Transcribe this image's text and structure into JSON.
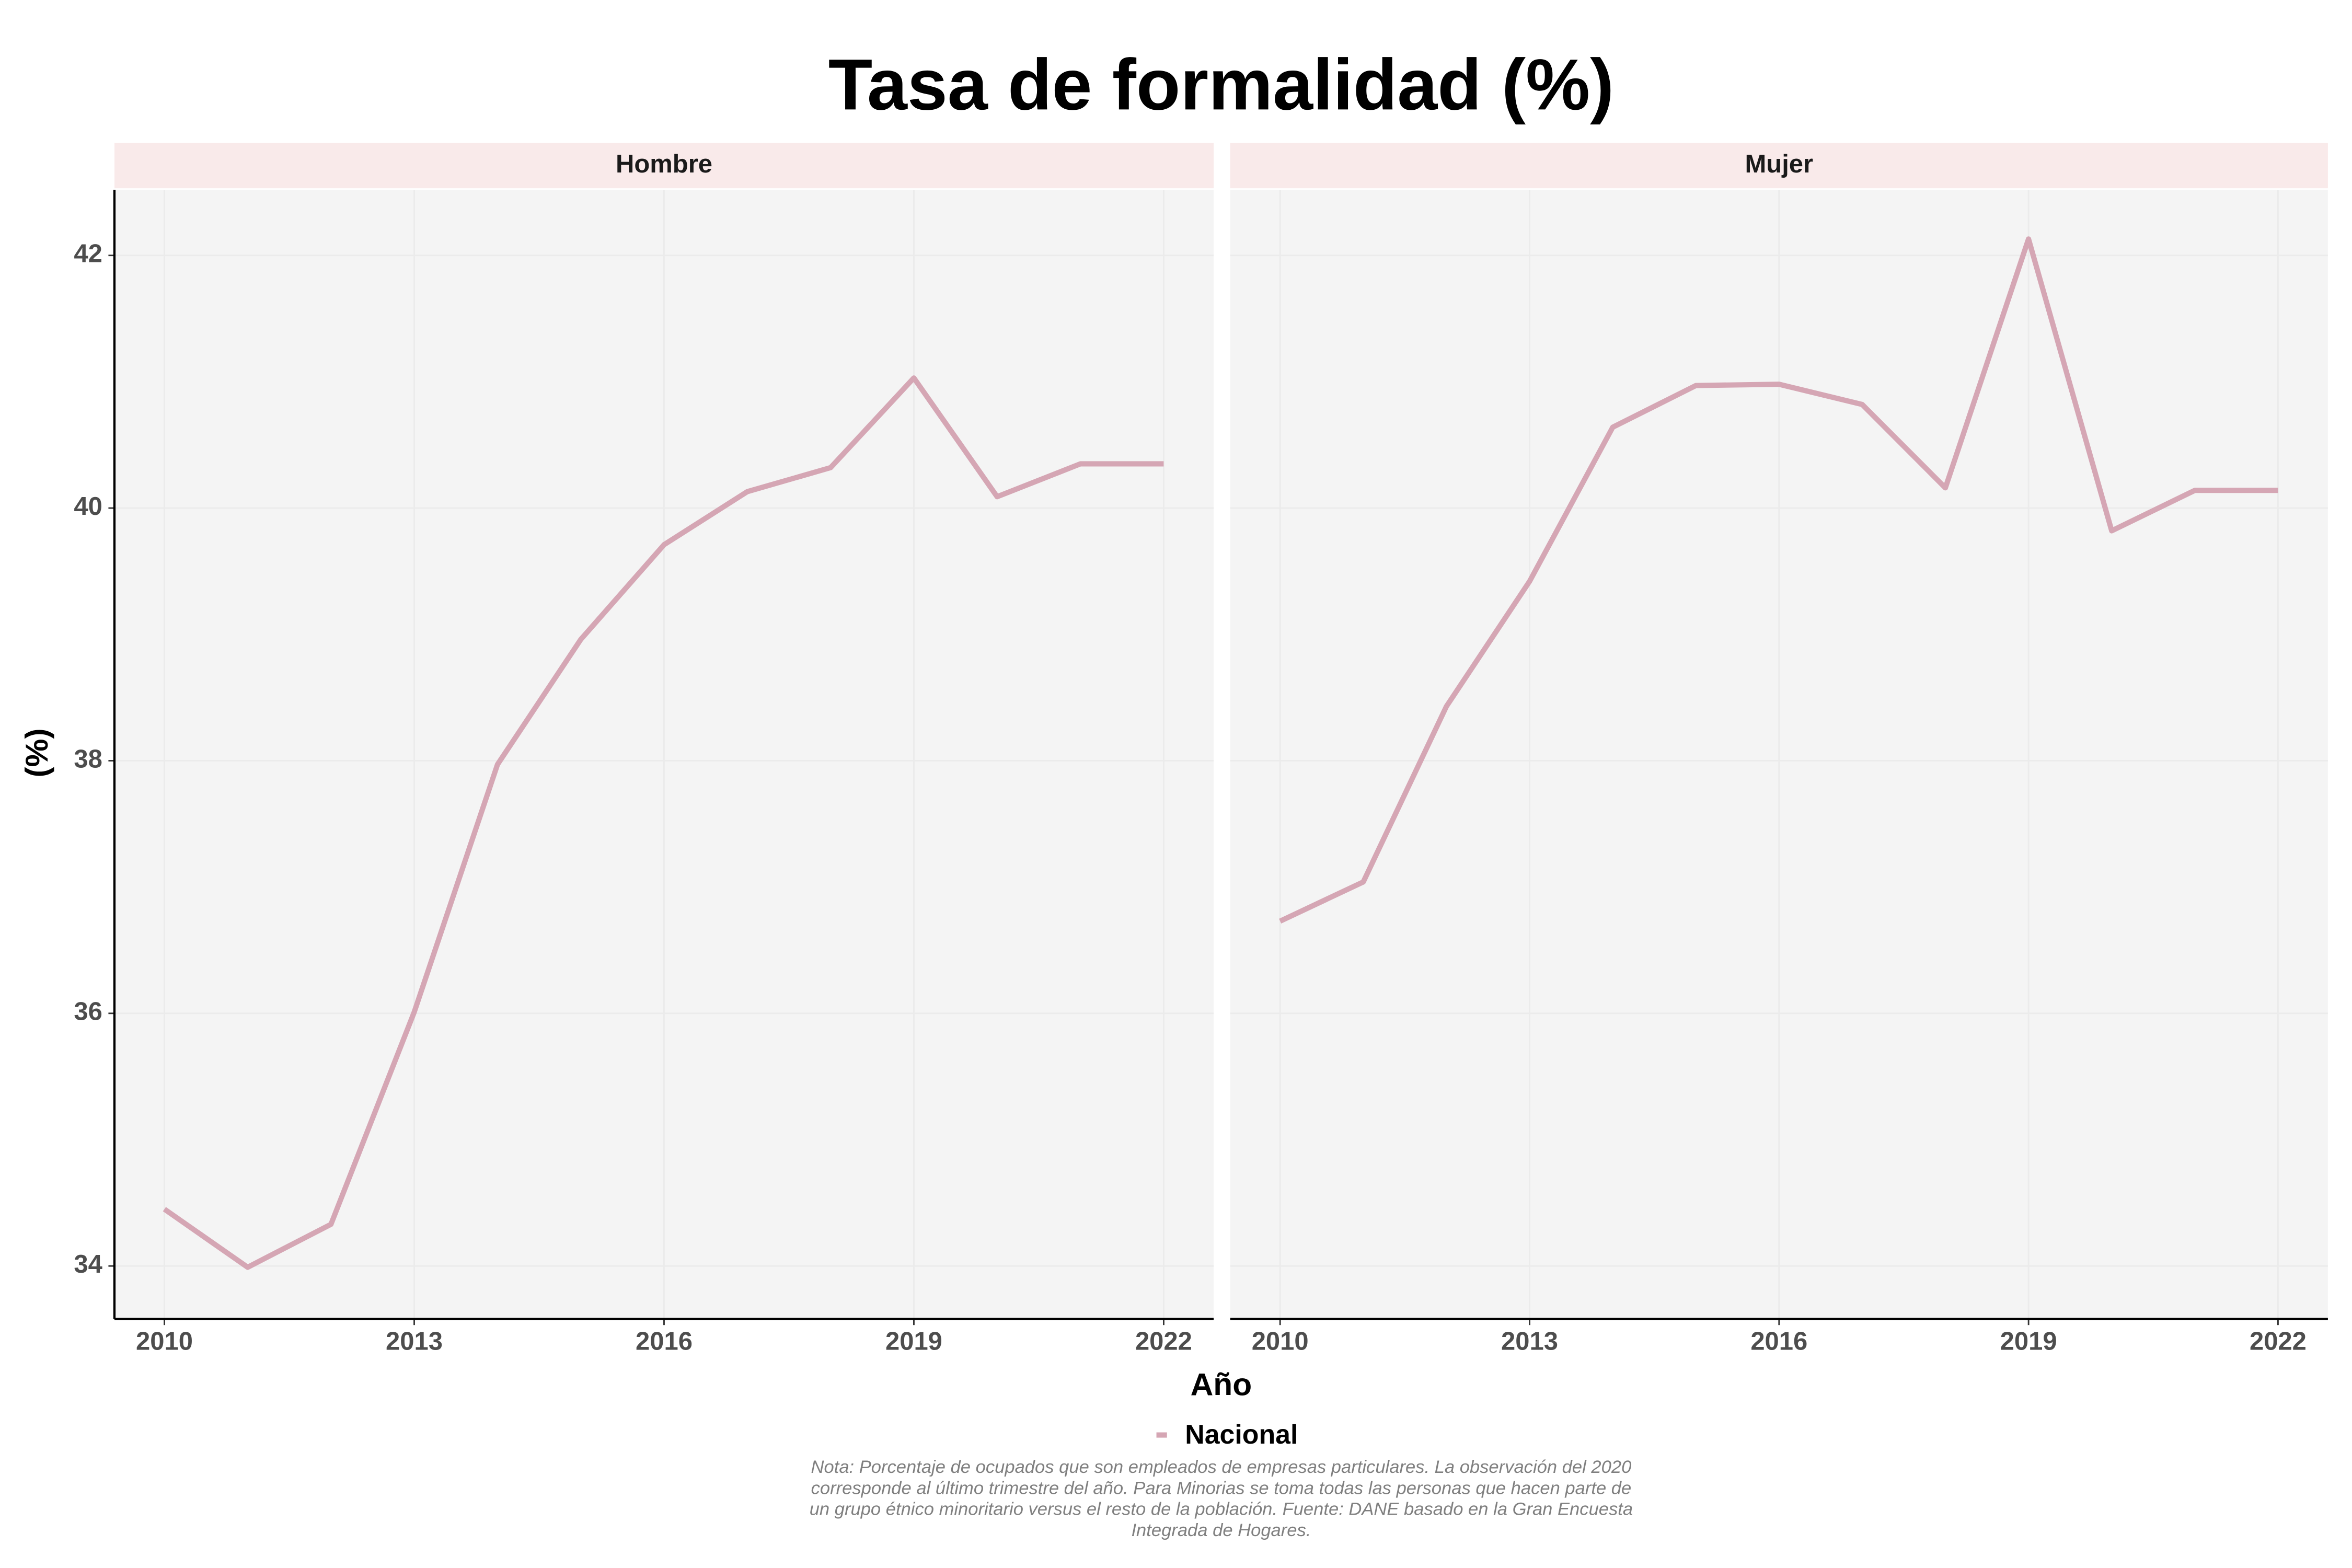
{
  "title": "Tasa de formalidad (%)",
  "x_label": "Año",
  "y_label": "(%)",
  "note": [
    "Nota: Porcentaje de ocupados que son empleados de empresas particulares. La observación del 2020",
    "corresponde al último trimestre del año. Para Minorias se toma todas las personas que hacen parte de",
    "un grupo étnico minoritario versus el resto de la población. Fuente: DANE basado en la Gran Encuesta",
    "Integrada de Hogares."
  ],
  "chart_data": [
    {
      "type": "line",
      "title": "Hombre",
      "x": [
        2010,
        2011,
        2012,
        2013,
        2014,
        2015,
        2016,
        2017,
        2018,
        2019,
        2020,
        2021,
        2022
      ],
      "series": [
        {
          "name": "Nacional",
          "color": "#d5a6b4",
          "values": [
            34.45,
            33.99,
            34.33,
            36.01,
            37.97,
            38.96,
            39.71,
            40.13,
            40.32,
            41.03,
            40.09,
            40.35,
            40.35
          ]
        }
      ],
      "xlim": [
        2009.4,
        2022.6
      ],
      "xticks": [
        2010,
        2013,
        2016,
        2019,
        2022
      ],
      "ylim": [
        33.58,
        42.52
      ],
      "yticks": [
        34,
        36,
        38,
        40,
        42
      ],
      "grid": true
    },
    {
      "type": "line",
      "title": "Mujer",
      "x": [
        2010,
        2011,
        2012,
        2013,
        2014,
        2015,
        2016,
        2017,
        2018,
        2019,
        2020,
        2021,
        2022
      ],
      "series": [
        {
          "name": "Nacional",
          "color": "#d5a6b4",
          "values": [
            36.73,
            37.04,
            38.43,
            39.42,
            40.64,
            40.97,
            40.98,
            40.82,
            40.16,
            42.13,
            39.82,
            40.14,
            40.14
          ]
        }
      ],
      "xlim": [
        2009.4,
        2022.6
      ],
      "xticks": [
        2010,
        2013,
        2016,
        2019,
        2022
      ],
      "ylim": [
        33.58,
        42.52
      ],
      "yticks": [
        34,
        36,
        38,
        40,
        42
      ],
      "grid": true
    }
  ]
}
